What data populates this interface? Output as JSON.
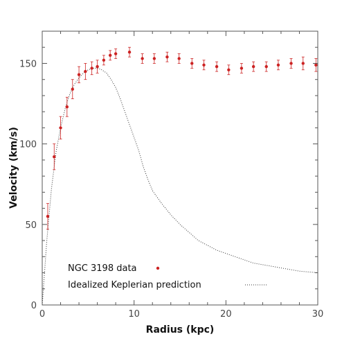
{
  "chart_data": {
    "type": "scatter",
    "title": "",
    "xlabel": "Radius (kpc)",
    "ylabel": "Velocity (km/s)",
    "xlim": [
      0,
      30
    ],
    "ylim": [
      0,
      170
    ],
    "xticks": [
      0,
      10,
      20,
      30
    ],
    "yticks": [
      0,
      50,
      100,
      150
    ],
    "grid": false,
    "legend_position": "bottom-left",
    "series": [
      {
        "name": "NGC 3198 data",
        "kind": "points-with-error-bars",
        "color": "#cc2222",
        "x": [
          0.6,
          1.3,
          2.0,
          2.7,
          3.3,
          4.0,
          4.7,
          5.4,
          6.0,
          6.7,
          7.4,
          8.0,
          9.5,
          10.9,
          12.2,
          13.6,
          14.9,
          16.3,
          17.6,
          19.0,
          20.3,
          21.7,
          23.0,
          24.4,
          25.7,
          27.1,
          28.4,
          29.8
        ],
        "y": [
          55,
          92,
          110,
          123,
          134,
          143,
          145,
          147,
          148,
          152,
          155,
          156,
          157,
          153,
          153,
          154,
          153,
          150,
          149,
          148,
          146,
          147,
          148,
          148,
          149,
          150,
          150,
          149
        ],
        "err": [
          8,
          8,
          7,
          6,
          6,
          5,
          5,
          4,
          4,
          3,
          3,
          3,
          3,
          3,
          3,
          3,
          3,
          3,
          3,
          3,
          3,
          3,
          3,
          3,
          3,
          3,
          4,
          4
        ]
      },
      {
        "name": "Idealized Keplerian prediction",
        "kind": "dotted-line",
        "color": "#333333",
        "x": [
          0,
          0.5,
          1,
          1.5,
          2,
          2.5,
          3,
          3.5,
          4,
          4.5,
          5,
          5.5,
          6,
          6.5,
          7,
          7.5,
          8,
          8.5,
          9,
          9.5,
          10,
          10.5,
          11,
          11.5,
          12,
          13,
          14,
          15,
          16,
          17,
          18,
          19,
          20,
          21,
          22,
          23,
          24,
          25,
          26,
          27,
          28,
          29,
          30
        ],
        "y": [
          0,
          40,
          72,
          95,
          110,
          122,
          131,
          137,
          141,
          144,
          146,
          147,
          147,
          146,
          144,
          140,
          135,
          128,
          120,
          112,
          104,
          96,
          86,
          78,
          71,
          63,
          56,
          50,
          45,
          40,
          37,
          34,
          32,
          30,
          28,
          26,
          25,
          24,
          23,
          22,
          21,
          20.5,
          20
        ]
      }
    ]
  }
}
